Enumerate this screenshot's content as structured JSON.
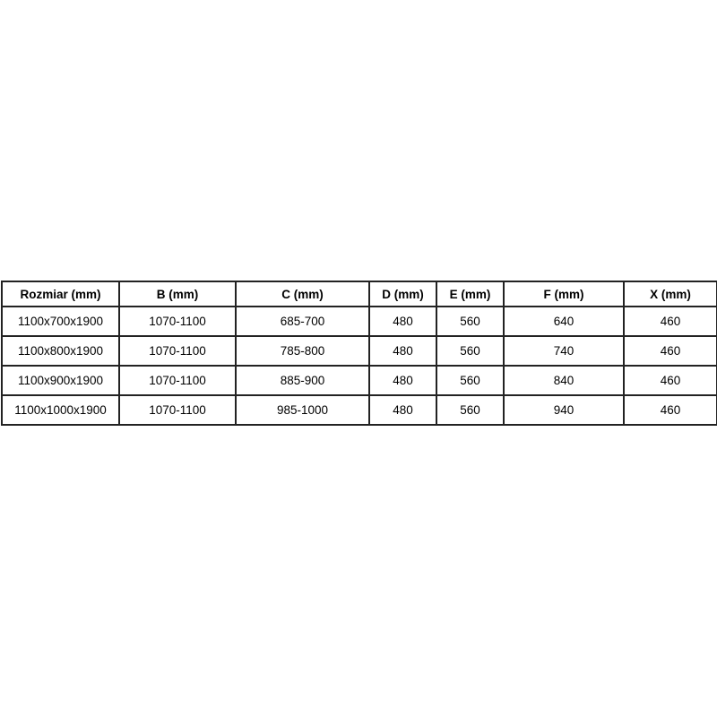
{
  "table": {
    "columns": [
      "Rozmiar (mm)",
      "B (mm)",
      "C (mm)",
      "D (mm)",
      "E (mm)",
      "F (mm)",
      "X (mm)"
    ],
    "rows": [
      [
        "1100x700x1900",
        "1070-1100",
        "685-700",
        "480",
        "560",
        "640",
        "460"
      ],
      [
        "1100x800x1900",
        "1070-1100",
        "785-800",
        "480",
        "560",
        "740",
        "460"
      ],
      [
        "1100x900x1900",
        "1070-1100",
        "885-900",
        "480",
        "560",
        "840",
        "460"
      ],
      [
        "1100x1000x1900",
        "1070-1100",
        "985-1000",
        "480",
        "560",
        "940",
        "460"
      ]
    ],
    "colors": {
      "border": "#222222",
      "text": "#000000",
      "background": "#ffffff"
    }
  }
}
